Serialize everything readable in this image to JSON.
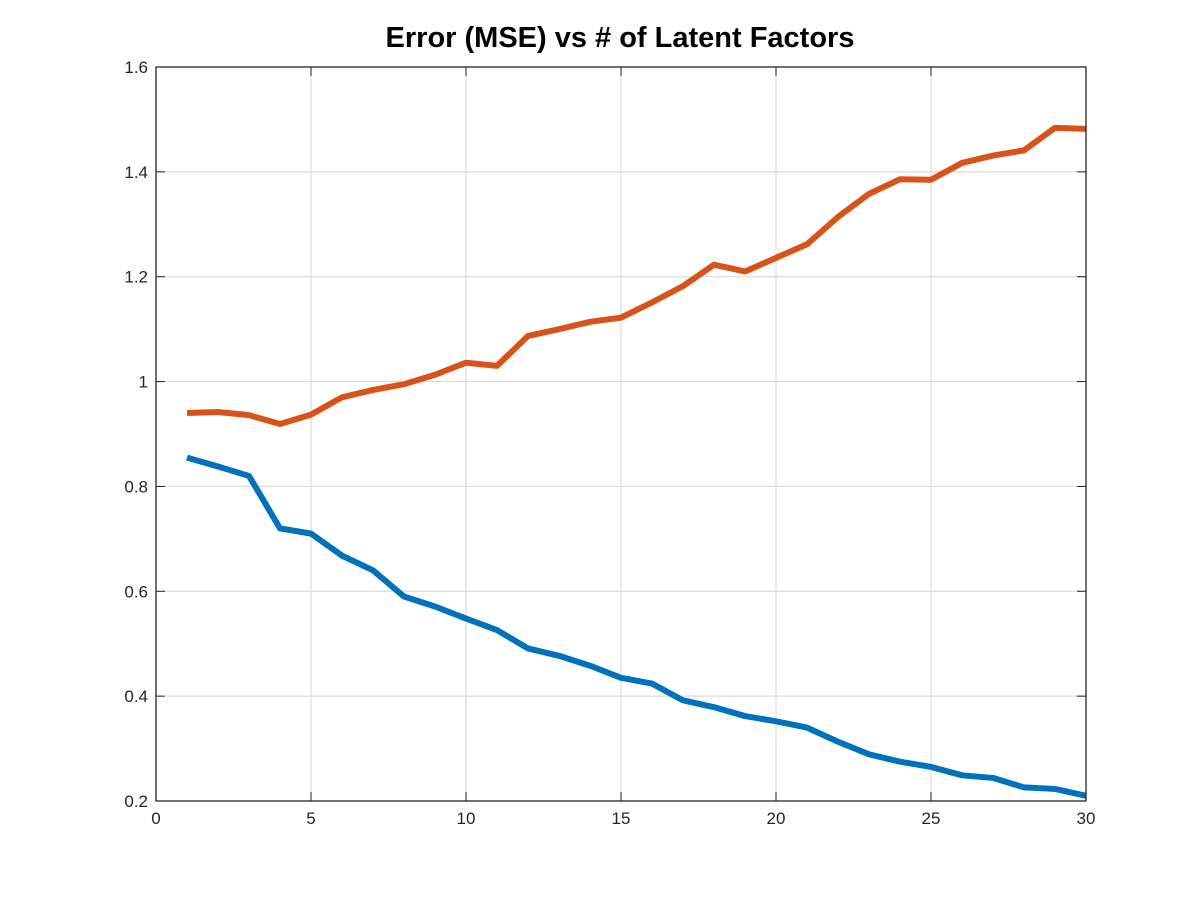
{
  "chart_data": {
    "type": "line",
    "title": "Error (MSE) vs # of Latent Factors",
    "xlabel": "",
    "ylabel": "",
    "xlim": [
      0,
      30
    ],
    "ylim": [
      0.2,
      1.6
    ],
    "xticks": [
      "0",
      "5",
      "10",
      "15",
      "20",
      "25",
      "30"
    ],
    "yticks": [
      "0.2",
      "0.4",
      "0.6",
      "0.8",
      "1",
      "1.2",
      "1.4",
      "1.6"
    ],
    "grid": true,
    "legend": "none",
    "x": [
      1,
      2,
      3,
      4,
      5,
      6,
      7,
      8,
      9,
      10,
      11,
      12,
      13,
      14,
      15,
      16,
      17,
      18,
      19,
      20,
      21,
      22,
      23,
      24,
      25,
      26,
      27,
      28,
      29,
      30
    ],
    "series": [
      {
        "color": "#0072bd",
        "values": [
          0.855,
          0.838,
          0.82,
          0.72,
          0.71,
          0.668,
          0.64,
          0.59,
          0.571,
          0.548,
          0.526,
          0.491,
          0.477,
          0.458,
          0.435,
          0.424,
          0.392,
          0.379,
          0.362,
          0.352,
          0.34,
          0.313,
          0.289,
          0.275,
          0.265,
          0.249,
          0.244,
          0.226,
          0.223,
          0.21
        ]
      },
      {
        "color": "#d95319",
        "values": [
          0.94,
          0.942,
          0.936,
          0.919,
          0.937,
          0.97,
          0.984,
          0.995,
          1.013,
          1.036,
          1.03,
          1.087,
          1.1,
          1.114,
          1.122,
          1.151,
          1.182,
          1.223,
          1.21,
          1.236,
          1.262,
          1.314,
          1.358,
          1.386,
          1.385,
          1.417,
          1.431,
          1.441,
          1.484,
          1.482
        ]
      }
    ]
  }
}
